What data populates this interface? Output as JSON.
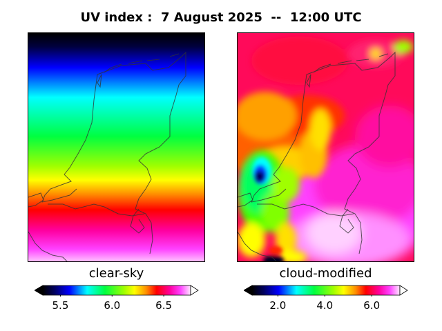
{
  "title": "UV index :  7 August 2025  --  12:00 UTC",
  "panels": {
    "left": {
      "label": "clear-sky",
      "colorbar": {
        "min": 5.33,
        "max": 6.76,
        "ticks": [
          "5.5",
          "6.0",
          "6.5"
        ],
        "tick_values": [
          5.5,
          6.0,
          6.5
        ]
      }
    },
    "right": {
      "label": "cloud-modified",
      "colorbar": {
        "min": 0.9,
        "max": 7.2,
        "ticks": [
          "2.0",
          "4.0",
          "6.0"
        ],
        "tick_values": [
          2.0,
          4.0,
          6.0
        ]
      }
    }
  },
  "colormap": "gist_ncar-like (black-blue-cyan-green-yellow-red-magenta-white)",
  "colors": {
    "coastline": "#333333",
    "frame": "#000000"
  }
}
